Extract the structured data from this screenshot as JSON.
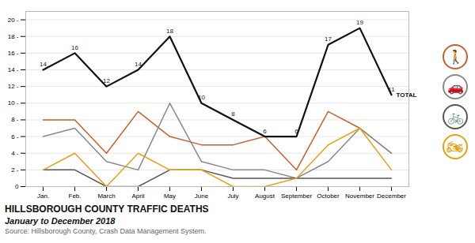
{
  "chart_data": {
    "type": "line",
    "title": "HILLSBOROUGH COUNTY TRAFFIC DEATHS",
    "subtitle": "January to December 2018",
    "caption": "Source: Hillsborough County, Crash Data Management System.",
    "categories": [
      "Jan.",
      "Feb.",
      "March",
      "April",
      "May",
      "June",
      "July",
      "August",
      "September",
      "October",
      "November",
      "December"
    ],
    "series": [
      {
        "name": "TOTAL",
        "color": "#111111",
        "values": [
          14,
          16,
          12,
          14,
          18,
          10,
          8,
          6,
          6,
          17,
          19,
          11
        ],
        "data_labels": true
      },
      {
        "name": "🚶",
        "color": "#c8602a",
        "values": [
          8,
          8,
          4,
          9,
          6,
          5,
          5,
          6,
          2,
          9,
          7,
          4
        ]
      },
      {
        "name": "🚗",
        "color": "#888888",
        "values": [
          6,
          7,
          3,
          2,
          10,
          3,
          2,
          2,
          1,
          3,
          7,
          4
        ]
      },
      {
        "name": "🚲",
        "color": "#555555",
        "values": [
          2,
          2,
          0,
          0,
          2,
          2,
          1,
          1,
          1,
          1,
          1,
          1
        ]
      },
      {
        "name": "🏍",
        "color": "#e8a010",
        "values": [
          2,
          4,
          0,
          4,
          2,
          2,
          0,
          0,
          1,
          5,
          7,
          2
        ]
      }
    ],
    "ylim": [
      0,
      21
    ],
    "yticks": [
      0,
      {
        "value": 2,
        "label": "2 -"
      },
      {
        "value": 4,
        "label": "4 -"
      },
      {
        "value": 6,
        "label": "6 -"
      },
      {
        "value": 8,
        "label": "8 -"
      },
      {
        "value": 10,
        "label": "10 -"
      },
      {
        "value": 12,
        "label": "12 -"
      },
      {
        "value": 14,
        "label": "14 -"
      },
      {
        "value": 16,
        "label": "16 -"
      },
      {
        "value": 18,
        "label": "18 -"
      },
      {
        "value": 20,
        "label": "20 -"
      }
    ],
    "grid": true
  }
}
